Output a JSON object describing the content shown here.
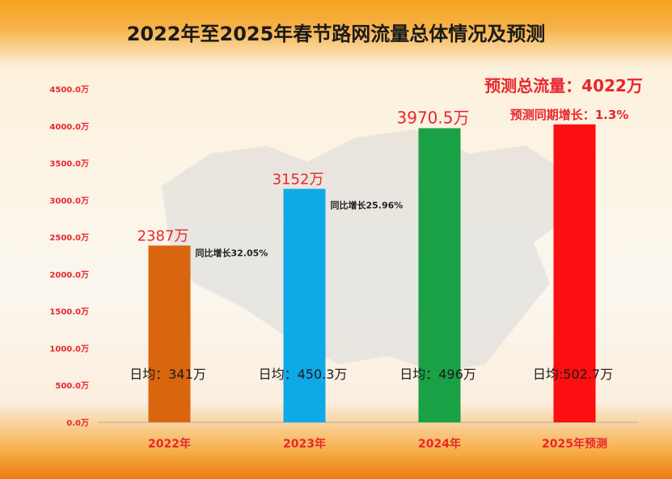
{
  "title": "2022年至2025年春节路网流量总体情况及预测",
  "colors": {
    "accent_red": "#e8262e",
    "bar_2022": "#d9660f",
    "bar_2023": "#10a9e7",
    "bar_2024": "#1aa145",
    "bar_2025": "#fb0f10"
  },
  "forecast_note": {
    "total": "预测总流量：4022万",
    "growth": "预测同期增长：1.3%"
  },
  "chart_data": {
    "type": "bar",
    "categories": [
      "2022年",
      "2023年",
      "2024年",
      "2025年预测"
    ],
    "values": [
      2387,
      3152,
      3970.5,
      4022
    ],
    "ylim": [
      0,
      4500
    ],
    "yticks": [
      "0.0万",
      "500.0万",
      "1000.0万",
      "1500.0万",
      "2000.0万",
      "2500.0万",
      "3000.0万",
      "3500.0万",
      "4000.0万",
      "4500.0万"
    ],
    "value_labels": [
      "2387万",
      "3152万",
      "3970.5万",
      ""
    ],
    "growth_labels": [
      "同比增长32.05%",
      "同比增长25.96%",
      "",
      ""
    ],
    "daily_labels": [
      "日均：341万",
      "日均：450.3万",
      "日均：496万",
      "日均:502.7万"
    ],
    "grid": false
  }
}
